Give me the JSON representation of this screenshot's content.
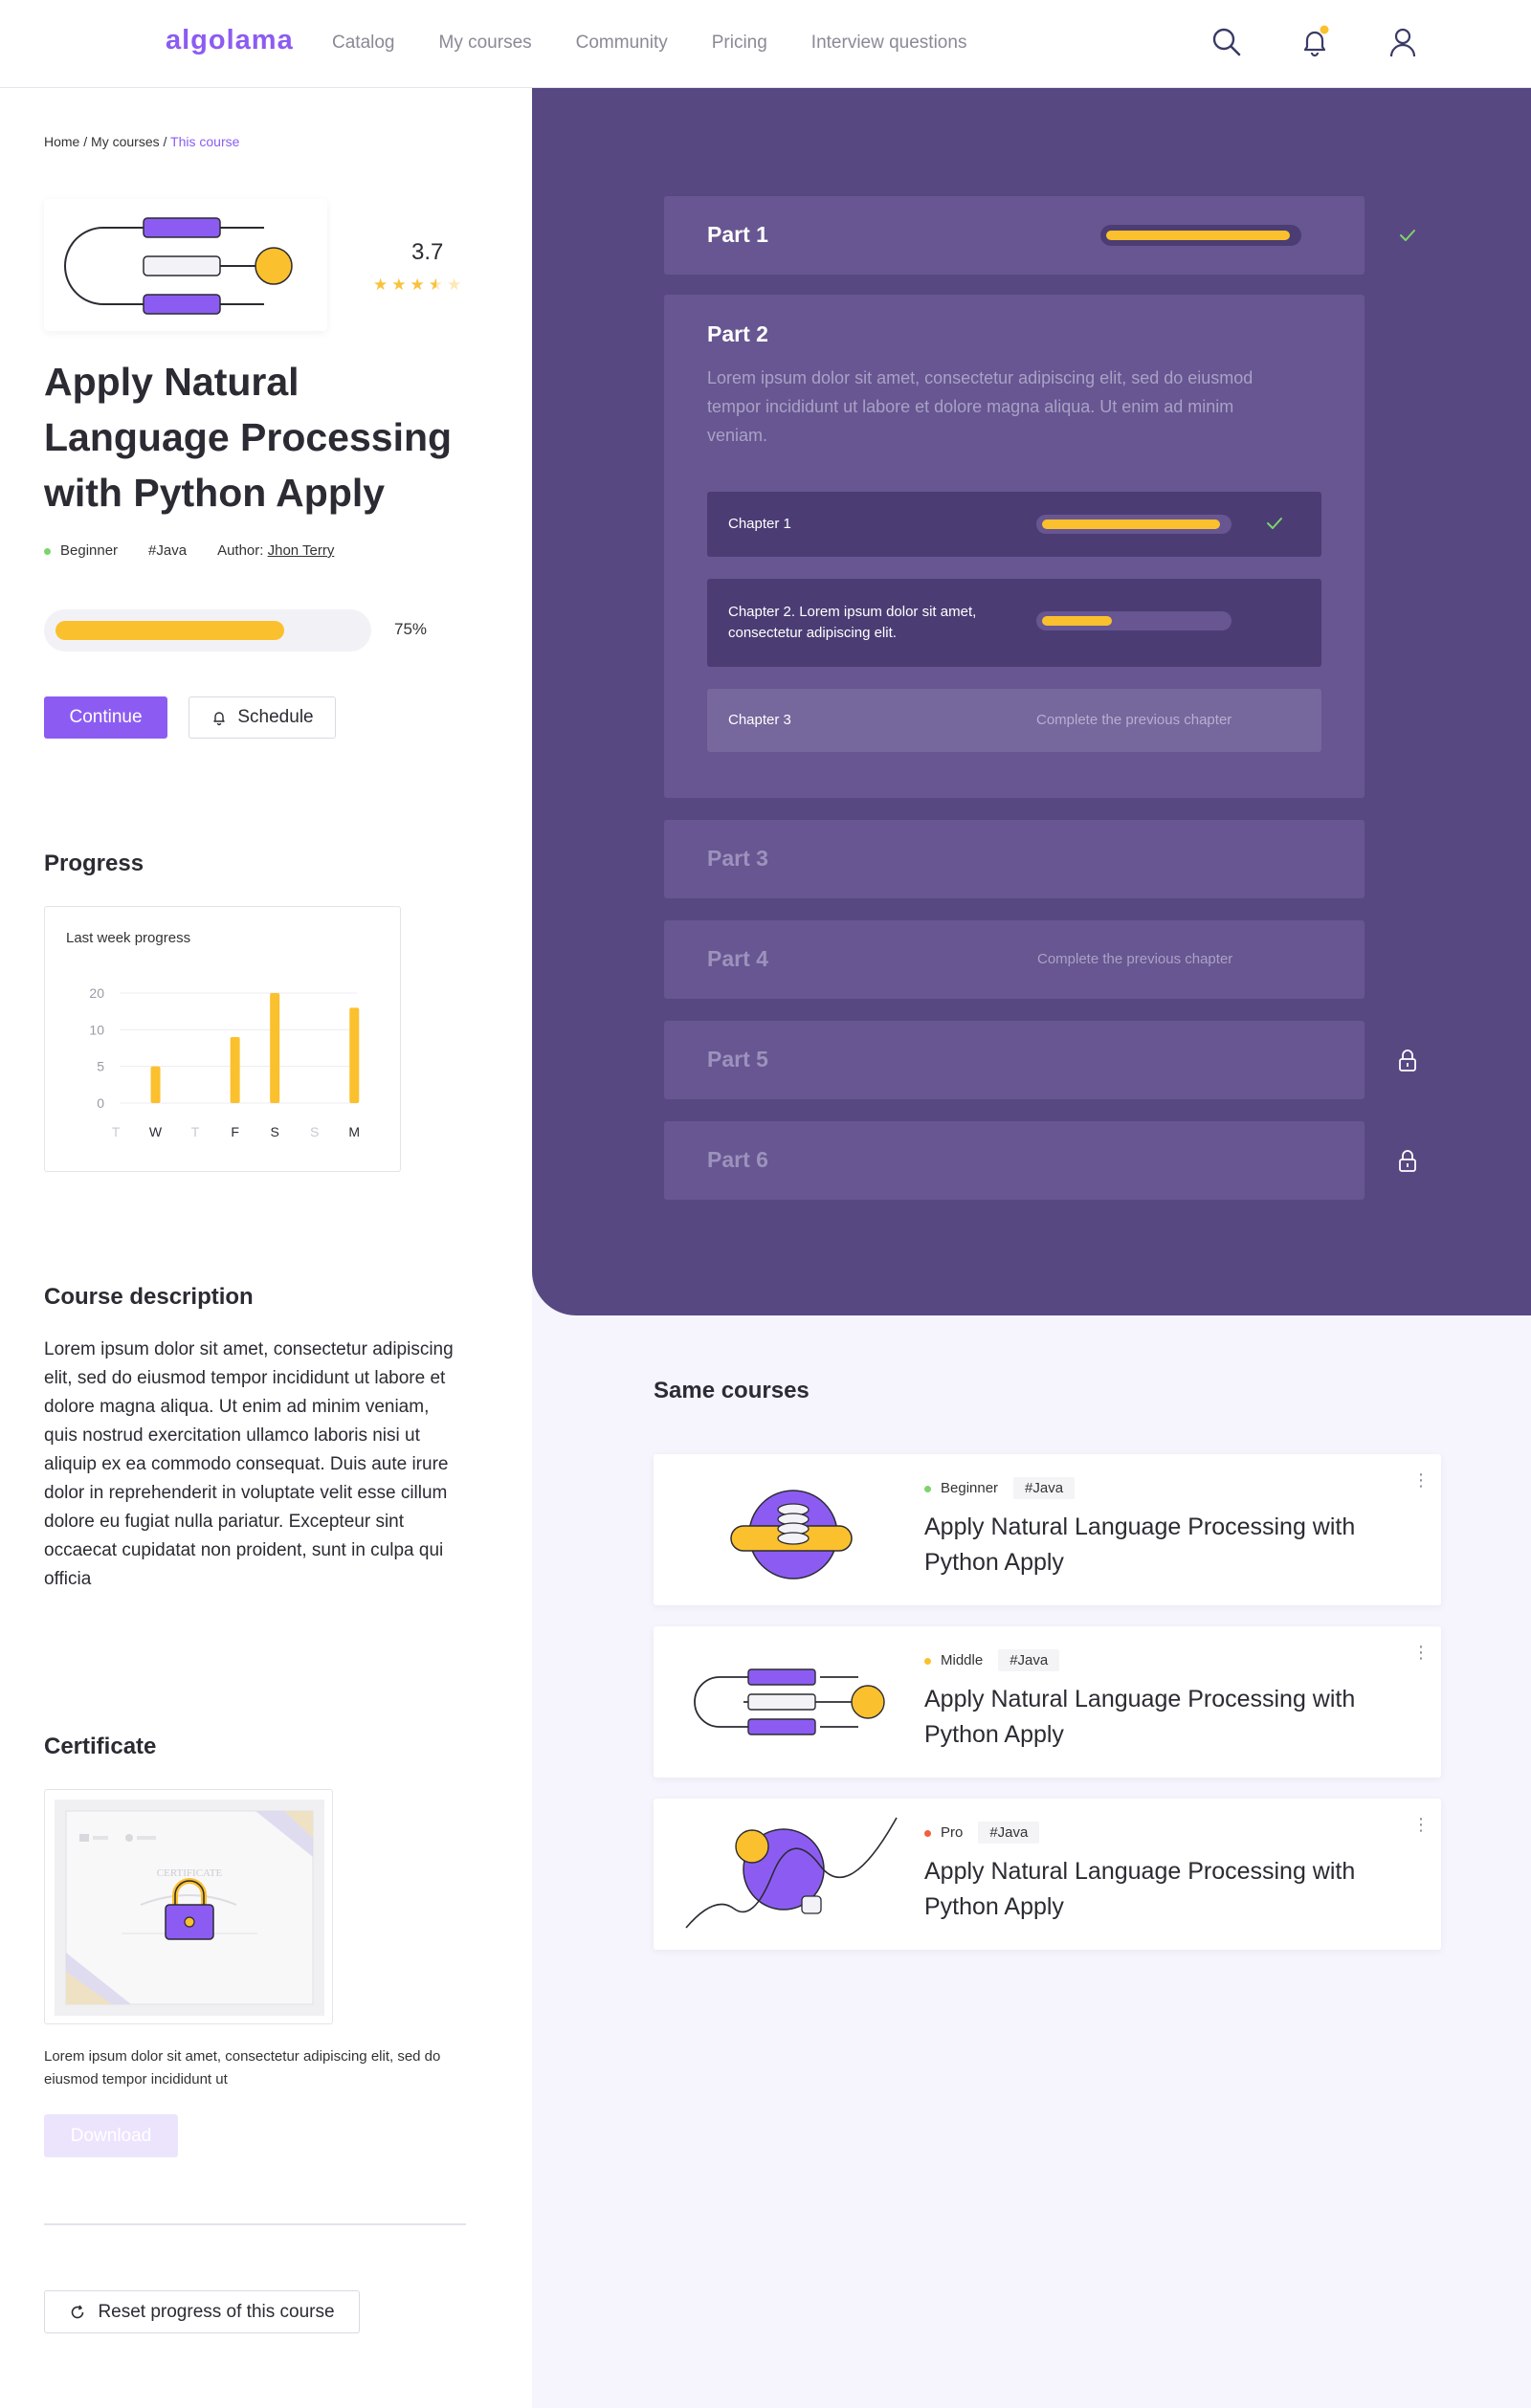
{
  "header": {
    "logo": "algolama",
    "nav": [
      "Catalog",
      "My courses",
      "Community",
      "Pricing",
      "Interview questions"
    ],
    "icons": [
      "search-icon",
      "bell-icon",
      "user-icon"
    ],
    "notification_dot_color": "#fbc02d"
  },
  "breadcrumb": {
    "home": "Home",
    "sep1": " / ",
    "my_courses": "My courses",
    "sep2": " / ",
    "current": "This course"
  },
  "course": {
    "rating": "3.7",
    "rating_value": 3.7,
    "title": "Apply Natural Language Processing with Python Apply",
    "level": "Beginner",
    "tag": "#Java",
    "author_label": "Author: ",
    "author": "Jhon Terry",
    "progress_label": "75%",
    "progress": 0.75,
    "continue": "Continue",
    "schedule": "Schedule"
  },
  "progress_section": {
    "heading": "Progress",
    "chart_title": "Last week progress"
  },
  "chart_data": {
    "type": "bar",
    "title": "Last week progress",
    "categories": [
      "T",
      "W",
      "T",
      "F",
      "S",
      "S",
      "M"
    ],
    "values": [
      0,
      5,
      0,
      9,
      20,
      0,
      16
    ],
    "active_categories": [
      false,
      true,
      false,
      true,
      true,
      false,
      true
    ],
    "yticks": [
      "0",
      "5",
      "10",
      "20"
    ],
    "ytick_values": [
      0,
      5,
      10,
      20
    ],
    "bar_color": "#fbc02d",
    "grid": true
  },
  "description": {
    "heading": "Course description",
    "text": "Lorem ipsum dolor sit amet, consectetur adipiscing elit, sed do eiusmod tempor incididunt ut labore et dolore magna aliqua. Ut enim ad minim veniam, quis nostrud exercitation ullamco laboris nisi ut aliquip ex ea commodo consequat. Duis aute irure dolor in reprehenderit in voluptate velit esse cillum dolore eu fugiat nulla pariatur. Excepteur sint occaecat cupidatat non proident, sunt in culpa qui officia"
  },
  "certificate": {
    "heading": "Certificate",
    "image_word": "CERTIFICATE",
    "text": "Lorem ipsum dolor sit amet, consectetur adipiscing elit, sed do eiusmod tempor incididunt ut",
    "download": "Download"
  },
  "reset": "Reset progress of this course",
  "parts": {
    "p1": {
      "name": "Part 1",
      "progress": 0.97,
      "status_icon": "check-icon"
    },
    "p2": {
      "name": "Part 2",
      "text": "Lorem ipsum dolor sit amet, consectetur adipiscing elit, sed do eiusmod tempor incididunt ut labore et dolore magna aliqua. Ut enim ad minim veniam.",
      "chapters": {
        "c1": {
          "name": "Chapter 1",
          "progress": 0.97,
          "status_icon": "check-icon"
        },
        "c2": {
          "name": "Chapter 2. Lorem ipsum dolor sit amet, consectetur adipiscing elit.",
          "progress": 0.38
        },
        "c3": {
          "name": "Chapter 3",
          "note": "Complete the previous chapter"
        }
      }
    },
    "p3": {
      "name": "Part 3"
    },
    "p4": {
      "name": "Part 4",
      "note": "Complete the previous chapter"
    },
    "p5": {
      "name": "Part 5",
      "status_icon": "lock-icon"
    },
    "p6": {
      "name": "Part 6",
      "status_icon": "lock-icon"
    }
  },
  "colors": {
    "accent": "#8c5cf2",
    "panel": "#584882",
    "progress": "#fbc02d",
    "check": "#7ed36a"
  },
  "same_courses": {
    "heading": "Same courses",
    "items": [
      {
        "level": "Beginner",
        "level_color": "#7ed36a",
        "tag": "#Java",
        "title": "Apply Natural Language Processing with Python Apply",
        "more": "⋮"
      },
      {
        "level": "Middle",
        "level_color": "#fbc02d",
        "tag": "#Java",
        "title": "Apply Natural Language Processing with Python Apply",
        "more": "⋮"
      },
      {
        "level": "Pro",
        "level_color": "#f0603c",
        "tag": "#Java",
        "title": "Apply Natural Language Processing with Python Apply",
        "more": "⋮"
      }
    ]
  }
}
